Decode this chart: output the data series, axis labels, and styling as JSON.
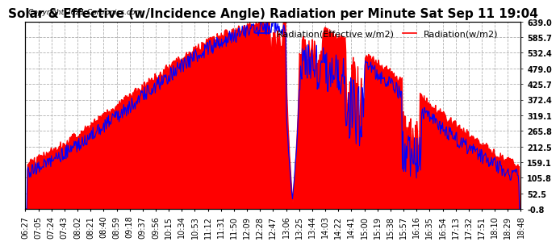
{
  "title": "Solar & Effective (w/Incidence Angle) Radiation per Minute Sat Sep 11 19:04",
  "copyright": "Copyright 2021 Cartronics.com",
  "ylabel_right_ticks": [
    639.0,
    585.7,
    532.4,
    479.0,
    425.7,
    372.4,
    319.1,
    265.8,
    212.5,
    159.1,
    105.8,
    52.5,
    -0.8
  ],
  "ylim": [
    -0.8,
    639.0
  ],
  "legend_blue": "Radiation(Effective w/m2)",
  "legend_red": "Radiation(w/m2)",
  "bg_color": "#ffffff",
  "grid_color": "#b0b0b0",
  "red_color": "#ff0000",
  "blue_color": "#0000ff",
  "fill_color": "#ff0000",
  "title_fontsize": 11,
  "tick_fontsize": 7,
  "legend_fontsize": 8,
  "x_tick_labels": [
    "06:27",
    "07:05",
    "07:24",
    "07:43",
    "08:02",
    "08:21",
    "08:40",
    "08:59",
    "09:18",
    "09:37",
    "09:56",
    "10:15",
    "10:34",
    "10:53",
    "11:12",
    "11:31",
    "11:50",
    "12:09",
    "12:28",
    "12:47",
    "13:06",
    "13:25",
    "13:44",
    "14:03",
    "14:22",
    "14:41",
    "15:00",
    "15:19",
    "15:38",
    "15:57",
    "16:16",
    "16:35",
    "16:54",
    "17:13",
    "17:32",
    "17:51",
    "18:10",
    "18:29",
    "18:48"
  ]
}
